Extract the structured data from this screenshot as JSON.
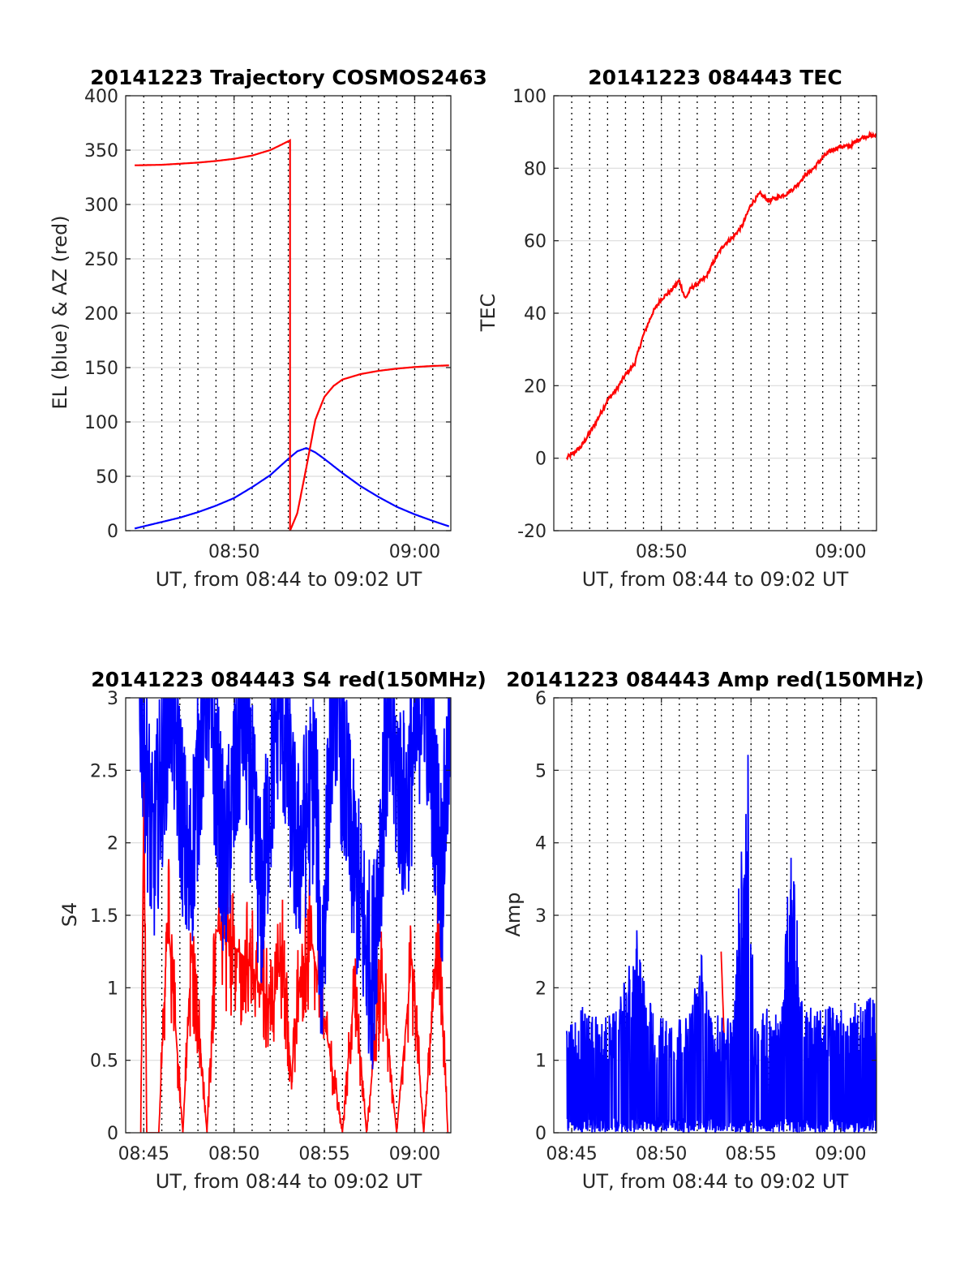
{
  "chart_data": [
    {
      "type": "line",
      "title": "20141223 Trajectory COSMOS2463",
      "xlabel": "UT, from 08:44 to 09:02 UT",
      "ylabel": "EL (blue) & AZ (red)",
      "xlim": [
        "08:44",
        "09:02"
      ],
      "ylim": [
        0,
        400
      ],
      "yticks": [
        "0",
        "50",
        "100",
        "150",
        "200",
        "250",
        "300",
        "350",
        "400"
      ],
      "xticks": [
        {
          "t": "08:50",
          "label": "08:50"
        },
        {
          "t": "09:00",
          "label": "09:00"
        }
      ],
      "grid": true,
      "colors": {
        "EL": "#0000ff",
        "AZ": "#ff0000"
      },
      "series": [
        {
          "name": "EL",
          "t": [
            "08:44:30",
            "08:46:00",
            "08:47:00",
            "08:48:00",
            "08:49:00",
            "08:50:00",
            "08:51:00",
            "08:52:00",
            "08:53:00",
            "08:53:30",
            "08:54:00",
            "08:54:30",
            "08:55:00",
            "08:56:00",
            "08:57:00",
            "08:58:00",
            "08:59:00",
            "09:00:00",
            "09:01:00",
            "09:01:54"
          ],
          "values": [
            2,
            8,
            12,
            17,
            23,
            30,
            40,
            51,
            66,
            73,
            76,
            72,
            66,
            53,
            41,
            31,
            22,
            15,
            9,
            4
          ]
        },
        {
          "name": "AZ",
          "t": [
            "08:44:30",
            "08:46:00",
            "08:47:00",
            "08:48:00",
            "08:49:00",
            "08:50:00",
            "08:51:00",
            "08:52:00",
            "08:52:30",
            "08:53:06",
            "08:53:06",
            "08:53:30",
            "08:54:00",
            "08:54:30",
            "08:55:00",
            "08:55:30",
            "08:56:00",
            "08:57:00",
            "08:58:00",
            "08:59:00",
            "09:00:00",
            "09:01:00",
            "09:01:54"
          ],
          "values": [
            336,
            336.5,
            337.5,
            338.5,
            340,
            342,
            345,
            350,
            354,
            359,
            0,
            16,
            58,
            102,
            123,
            133,
            139,
            144,
            147,
            149,
            150.5,
            151.5,
            152
          ]
        }
      ]
    },
    {
      "type": "line",
      "title": "20141223 084443 TEC",
      "xlabel": "UT, from 08:44 to 09:02 UT",
      "ylabel": "TEC",
      "xlim": [
        "08:44",
        "09:02"
      ],
      "ylim": [
        -20,
        100
      ],
      "yticks": [
        "-20",
        "0",
        "20",
        "40",
        "60",
        "80",
        "100"
      ],
      "xticks": [
        {
          "t": "08:50",
          "label": "08:50"
        },
        {
          "t": "09:00",
          "label": "09:00"
        }
      ],
      "grid": true,
      "colors": {
        "TEC": "#ff0000"
      },
      "series": [
        {
          "name": "TEC",
          "t": [
            "08:44:43",
            "08:45:30",
            "08:46:15",
            "08:47:00",
            "08:47:30",
            "08:48:00",
            "08:48:30",
            "08:49:00",
            "08:49:30",
            "08:50:00",
            "08:50:30",
            "08:51:00",
            "08:51:20",
            "08:51:40",
            "08:52:00",
            "08:52:30",
            "08:53:00",
            "08:53:30",
            "08:54:00",
            "08:54:30",
            "08:55:00",
            "08:55:30",
            "08:56:00",
            "08:56:30",
            "08:57:00",
            "08:57:30",
            "08:58:00",
            "08:58:30",
            "08:59:00",
            "08:59:30",
            "09:00:00",
            "09:00:30",
            "09:01:00",
            "09:01:30",
            "09:02:00"
          ],
          "values": [
            0,
            3,
            9,
            16,
            19,
            23,
            26,
            34,
            40,
            44,
            46,
            49,
            44,
            47,
            48,
            50,
            55,
            59,
            61,
            64,
            70,
            73,
            71,
            72,
            73,
            75,
            78,
            80,
            83,
            85,
            86,
            86,
            88,
            89,
            89
          ]
        }
      ]
    },
    {
      "type": "line",
      "title": "20141223 084443 S4 red(150MHz)",
      "xlabel": "UT, from 08:44 to 09:02 UT",
      "ylabel": "S4",
      "xlim": [
        "08:44",
        "09:02"
      ],
      "ylim": [
        0,
        3
      ],
      "yticks": [
        "0",
        "0.5",
        "1",
        "1.5",
        "2",
        "2.5",
        "3"
      ],
      "xticks": [
        {
          "t": "08:45",
          "label": "08:45"
        },
        {
          "t": "08:50",
          "label": "08:50"
        },
        {
          "t": "08:55",
          "label": "08:55"
        },
        {
          "t": "09:00",
          "label": "09:00"
        }
      ],
      "grid": true,
      "colors": {
        "red": "#ff0000",
        "blue": "#0000ff"
      },
      "series": [
        {
          "name": "red",
          "t": [
            "08:44:50",
            "08:45:00",
            "08:45:10",
            "08:45:50",
            "08:46:20",
            "08:47:10",
            "08:47:40",
            "08:48:30",
            "08:49:00",
            "08:50:40",
            "08:51:30",
            "08:52:10",
            "08:52:40",
            "08:53:10",
            "08:53:40",
            "08:54:20",
            "08:56:00",
            "08:56:40",
            "08:57:20",
            "08:58:10",
            "08:59:00",
            "08:59:50",
            "09:00:30",
            "09:01:20",
            "09:01:50"
          ],
          "values": [
            0,
            2.2,
            0,
            0,
            1.5,
            0,
            1.3,
            0,
            1.4,
            1.2,
            1.0,
            0.85,
            1.3,
            0.38,
            1.1,
            1.3,
            0,
            1.0,
            0,
            1.1,
            0,
            1.2,
            0,
            1.4,
            0
          ]
        },
        {
          "name": "blue",
          "t": [
            "08:44:40",
            "08:45:30",
            "08:46:30",
            "08:47:30",
            "08:48:30",
            "08:49:30",
            "08:50:30",
            "08:51:30",
            "08:52:30",
            "08:53:30",
            "08:54:30",
            "08:54:50",
            "08:55:30",
            "08:56:30",
            "08:57:20",
            "08:57:40",
            "08:58:30",
            "08:59:30",
            "09:00:30",
            "09:01:30",
            "09:01:58"
          ],
          "values": [
            3,
            1.6,
            2.8,
            1.4,
            2.9,
            1.5,
            2.7,
            1.3,
            2.8,
            1.6,
            2.2,
            0.7,
            2.9,
            1.7,
            1.0,
            0.85,
            2.5,
            1.9,
            2.9,
            1.5,
            2.6
          ]
        }
      ]
    },
    {
      "type": "line",
      "title": "20141223 084443 Amp red(150MHz)",
      "xlabel": "UT, from 08:44 to 09:02 UT",
      "ylabel": "Amp",
      "xlim": [
        "08:44",
        "09:02"
      ],
      "ylim": [
        0,
        6
      ],
      "yticks": [
        "0",
        "1",
        "2",
        "3",
        "4",
        "5",
        "6"
      ],
      "xticks": [
        {
          "t": "08:45",
          "label": "08:45"
        },
        {
          "t": "08:50",
          "label": "08:50"
        },
        {
          "t": "08:55",
          "label": "08:55"
        },
        {
          "t": "09:00",
          "label": "09:00"
        }
      ],
      "grid": true,
      "colors": {
        "red": "#ff0000",
        "blue": "#0000ff"
      },
      "series": [
        {
          "name": "red",
          "t": [
            "08:53:20",
            "08:53:30"
          ],
          "values": [
            2.5,
            1.3
          ]
        },
        {
          "name": "blue",
          "t": [
            "08:44:43",
            "08:45:30",
            "08:46:30",
            "08:47:30",
            "08:48:10",
            "08:48:40",
            "08:49:10",
            "08:49:40",
            "08:50:30",
            "08:51:30",
            "08:52:20",
            "08:52:40",
            "08:53:30",
            "08:54:00",
            "08:54:35",
            "08:54:50",
            "08:55:10",
            "08:56:00",
            "08:56:40",
            "08:57:10",
            "08:57:25",
            "08:57:45",
            "08:58:30",
            "08:59:30",
            "09:00:30",
            "09:01:20",
            "09:01:58"
          ],
          "values": [
            1.4,
            1.7,
            1.5,
            1.6,
            2.2,
            2.7,
            1.9,
            1.5,
            1.6,
            1.5,
            2.5,
            1.6,
            1.5,
            1.6,
            4.6,
            5.45,
            1.5,
            1.7,
            1.5,
            3.7,
            3.8,
            1.8,
            1.6,
            1.7,
            1.6,
            1.9,
            1.7
          ]
        }
      ]
    }
  ]
}
